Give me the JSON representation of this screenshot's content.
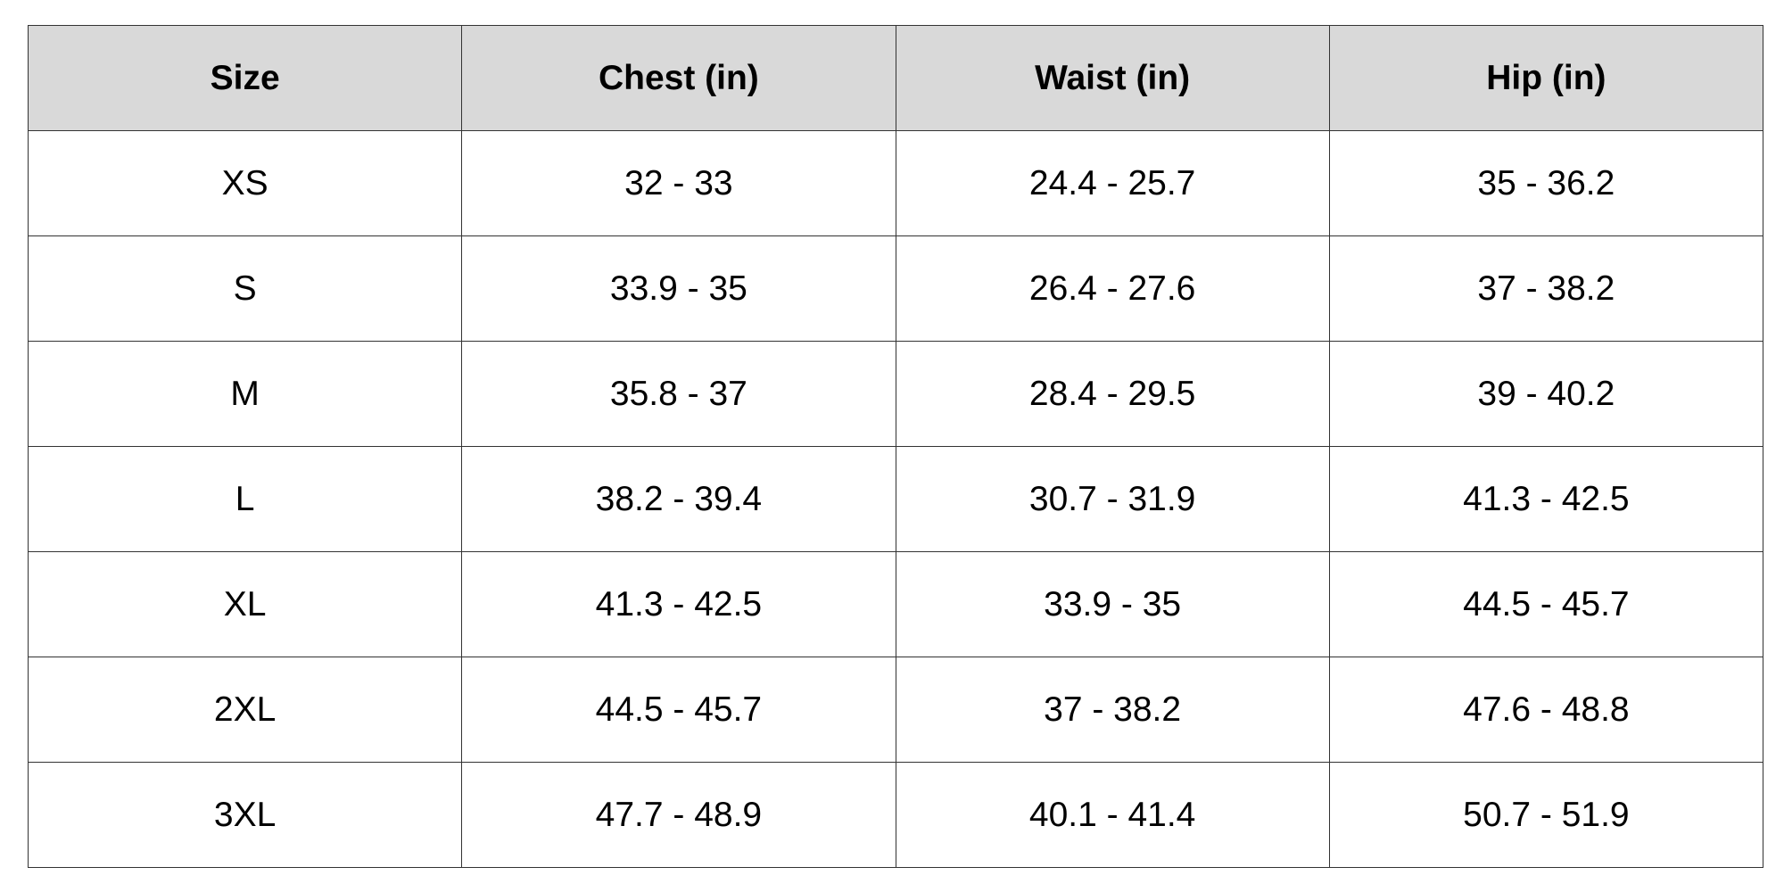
{
  "table": {
    "header": [
      "Size",
      "Chest (in)",
      "Waist (in)",
      "Hip (in)"
    ],
    "rows": [
      [
        "XS",
        "32 - 33",
        "24.4 - 25.7",
        "35 - 36.2"
      ],
      [
        "S",
        "33.9 - 35",
        "26.4 - 27.6",
        "37 - 38.2"
      ],
      [
        "M",
        "35.8 - 37",
        "28.4 - 29.5",
        "39 - 40.2"
      ],
      [
        "L",
        "38.2 - 39.4",
        "30.7 - 31.9",
        "41.3 - 42.5"
      ],
      [
        "XL",
        "41.3 - 42.5",
        "33.9 - 35",
        "44.5 - 45.7"
      ],
      [
        "2XL",
        "44.5 - 45.7",
        "37 - 38.2",
        "47.6 - 48.8"
      ],
      [
        "3XL",
        "47.7 - 48.9",
        "40.1 - 41.4",
        "50.7 - 51.9"
      ]
    ]
  }
}
